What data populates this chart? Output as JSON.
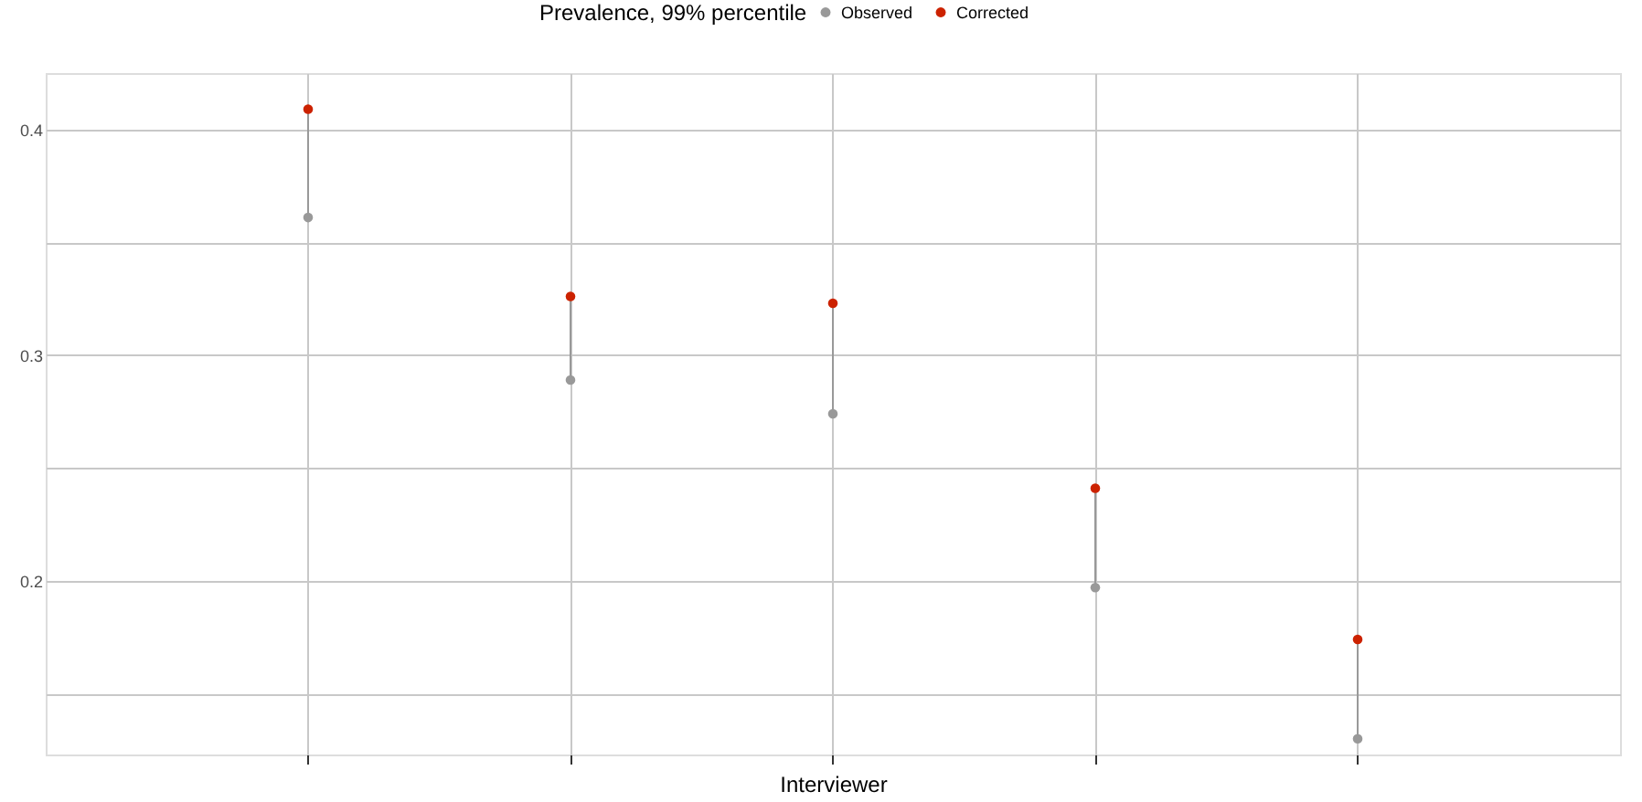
{
  "chart_data": {
    "type": "scatter",
    "xlabel": "Interviewer",
    "legend_title": "Prevalence, 99% percentile",
    "categories": [
      null,
      null,
      null,
      null,
      null
    ],
    "series": [
      {
        "name": "Observed",
        "color": "#999999",
        "values": [
          0.361,
          0.289,
          0.274,
          0.197,
          0.13
        ]
      },
      {
        "name": "Corrected",
        "color": "#cc2200",
        "values": [
          0.409,
          0.326,
          0.323,
          0.241,
          0.174
        ]
      }
    ],
    "ylim": [
      0.123,
      0.425
    ],
    "yticks": [
      {
        "value": 0.15,
        "label": null
      },
      0.2,
      {
        "value": 0.25,
        "label": null
      },
      0.3,
      {
        "value": 0.35,
        "label": null
      },
      0.4
    ],
    "grid": true,
    "legend": "top",
    "marker": "circle"
  }
}
